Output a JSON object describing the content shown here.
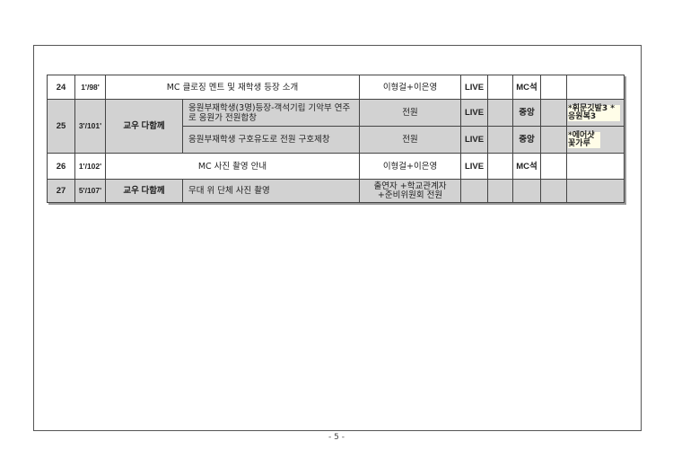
{
  "rows": [
    {
      "no": "24",
      "time": "1'/98'",
      "content": "MC 클로징 멘트 및 재학생 등장 소개",
      "performer": "이형걸+이은영",
      "sound": "LIVE",
      "position": "MC석"
    },
    {
      "no": "25",
      "time": "3'/101'",
      "group": "교우 다함께",
      "content": "응원부재학생(3명)등장-객석기립 기악부 연주로 응원가 전원합창",
      "performer": "전원",
      "sound": "LIVE",
      "position": "중앙",
      "note": "*휘문깃발3 *응원복3"
    },
    {
      "content": "응원부재학생 구호유도로 전원 구호제창",
      "performer": "전원",
      "sound": "LIVE",
      "position": "중앙",
      "note": "*에어샷 꽃가루"
    },
    {
      "no": "26",
      "time": "1'/102'",
      "content": "MC 사진 촬영 안내",
      "performer": "이형걸+이은영",
      "sound": "LIVE",
      "position": "MC석"
    },
    {
      "no": "27",
      "time": "5'/107'",
      "group": "교우 다함께",
      "content": "무대 위 단체 사진 촬영",
      "performer": "출연자 +학교관계자 +준비위원회 전원"
    }
  ],
  "footer": "- 5 -"
}
